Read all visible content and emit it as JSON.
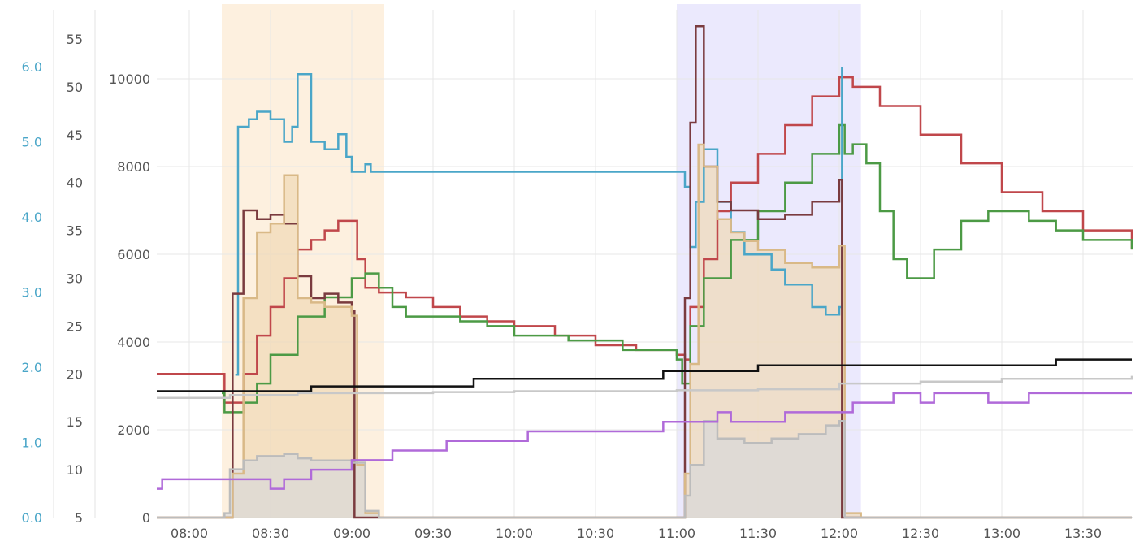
{
  "chart_data": {
    "type": "line",
    "title": "",
    "grid": true,
    "legend": "none",
    "x_axis": {
      "unit": "time",
      "min": "07:48",
      "max": "13:48",
      "tick_labels": [
        "08:00",
        "08:30",
        "09:00",
        "09:30",
        "10:00",
        "10:30",
        "11:00",
        "11:30",
        "12:00",
        "12:30",
        "13:00",
        "13:30"
      ]
    },
    "y_axes": [
      {
        "id": "left-outer",
        "color": "#4aa6c8",
        "min": 0.0,
        "max": 6.0,
        "tick_labels": [
          "0.0",
          "1.0",
          "2.0",
          "3.0",
          "4.0",
          "5.0",
          "6.0"
        ]
      },
      {
        "id": "left-middle",
        "color": "#555555",
        "min": 5,
        "max": 55,
        "tick_labels": [
          "5",
          "10",
          "15",
          "20",
          "25",
          "30",
          "35",
          "40",
          "45",
          "50",
          "55"
        ]
      },
      {
        "id": "left-inner",
        "color": "#555555",
        "min": 0,
        "max": 10000,
        "tick_labels": [
          "0",
          "2000",
          "4000",
          "6000",
          "8000",
          "10000"
        ]
      }
    ],
    "bands": [
      {
        "from": "08:12",
        "to": "09:12",
        "color": "#fdf0df"
      },
      {
        "from": "11:00",
        "to": "12:08",
        "color": "#ebe9fd"
      }
    ],
    "series": [
      {
        "color": "#c0474b",
        "axis": "left-middle",
        "step": true,
        "points": [
          [
            "07:48",
            20
          ],
          [
            "08:12",
            20
          ],
          [
            "08:13",
            17
          ],
          [
            "08:18",
            17
          ],
          [
            "08:20",
            20
          ],
          [
            "08:25",
            24
          ],
          [
            "08:30",
            27
          ],
          [
            "08:35",
            30
          ],
          [
            "08:40",
            33
          ],
          [
            "08:45",
            34
          ],
          [
            "08:50",
            35
          ],
          [
            "08:55",
            36
          ],
          [
            "09:00",
            36
          ],
          [
            "09:02",
            32
          ],
          [
            "09:05",
            29
          ],
          [
            "09:10",
            28.5
          ],
          [
            "09:20",
            28
          ],
          [
            "09:30",
            27
          ],
          [
            "09:40",
            26
          ],
          [
            "09:50",
            25.5
          ],
          [
            "10:00",
            25
          ],
          [
            "10:15",
            24
          ],
          [
            "10:30",
            23
          ],
          [
            "10:45",
            22.5
          ],
          [
            "11:00",
            22
          ],
          [
            "11:03",
            21.5
          ],
          [
            "11:05",
            27
          ],
          [
            "11:10",
            32
          ],
          [
            "11:15",
            37
          ],
          [
            "11:20",
            40
          ],
          [
            "11:30",
            43
          ],
          [
            "11:40",
            46
          ],
          [
            "11:50",
            49
          ],
          [
            "12:00",
            51
          ],
          [
            "12:05",
            50
          ],
          [
            "12:15",
            48
          ],
          [
            "12:30",
            45
          ],
          [
            "12:45",
            42
          ],
          [
            "13:00",
            39
          ],
          [
            "13:15",
            37
          ],
          [
            "13:30",
            35
          ],
          [
            "13:48",
            33
          ]
        ]
      },
      {
        "color": "#4c9a45",
        "axis": "left-middle",
        "step": true,
        "points": [
          [
            "08:12",
            18
          ],
          [
            "08:13",
            16
          ],
          [
            "08:20",
            17
          ],
          [
            "08:25",
            19
          ],
          [
            "08:30",
            22
          ],
          [
            "08:40",
            26
          ],
          [
            "08:50",
            28
          ],
          [
            "09:00",
            30
          ],
          [
            "09:05",
            30.5
          ],
          [
            "09:10",
            29
          ],
          [
            "09:15",
            27
          ],
          [
            "09:20",
            26
          ],
          [
            "09:40",
            25.5
          ],
          [
            "09:50",
            25
          ],
          [
            "10:00",
            24
          ],
          [
            "10:20",
            23.5
          ],
          [
            "10:40",
            22.5
          ],
          [
            "11:00",
            21.5
          ],
          [
            "11:02",
            19
          ],
          [
            "11:05",
            25
          ],
          [
            "11:10",
            30
          ],
          [
            "11:20",
            34
          ],
          [
            "11:30",
            37
          ],
          [
            "11:40",
            40
          ],
          [
            "11:50",
            43
          ],
          [
            "12:00",
            46
          ],
          [
            "12:02",
            43
          ],
          [
            "12:05",
            44
          ],
          [
            "12:10",
            42
          ],
          [
            "12:15",
            37
          ],
          [
            "12:20",
            32
          ],
          [
            "12:25",
            30
          ],
          [
            "12:30",
            30
          ],
          [
            "12:35",
            33
          ],
          [
            "12:45",
            36
          ],
          [
            "12:55",
            37
          ],
          [
            "13:05",
            37
          ],
          [
            "13:10",
            36
          ],
          [
            "13:20",
            35
          ],
          [
            "13:30",
            34
          ],
          [
            "13:48",
            33
          ]
        ]
      },
      {
        "color": "#4aa6c8",
        "axis": "left-outer",
        "step": true,
        "points": [
          [
            "08:17",
            1.9
          ],
          [
            "08:18",
            5.2
          ],
          [
            "08:22",
            5.3
          ],
          [
            "08:25",
            5.4
          ],
          [
            "08:30",
            5.3
          ],
          [
            "08:35",
            5.0
          ],
          [
            "08:38",
            5.2
          ],
          [
            "08:40",
            5.9
          ],
          [
            "08:42",
            5.9
          ],
          [
            "08:45",
            5.0
          ],
          [
            "08:50",
            4.9
          ],
          [
            "08:55",
            5.1
          ],
          [
            "08:58",
            4.8
          ],
          [
            "09:00",
            4.6
          ],
          [
            "09:05",
            4.7
          ],
          [
            "09:07",
            4.6
          ],
          [
            "11:03",
            4.4
          ],
          [
            "11:05",
            3.6
          ],
          [
            "11:07",
            4.2
          ],
          [
            "11:10",
            4.9
          ],
          [
            "11:15",
            4.2
          ],
          [
            "11:20",
            3.8
          ],
          [
            "11:25",
            3.5
          ],
          [
            "11:30",
            3.5
          ],
          [
            "11:35",
            3.3
          ],
          [
            "11:40",
            3.1
          ],
          [
            "11:50",
            2.8
          ],
          [
            "11:55",
            2.7
          ],
          [
            "12:00",
            2.8
          ],
          [
            "12:01",
            6.0
          ]
        ]
      },
      {
        "color": "#7a3b3f",
        "axis": "left-inner",
        "step": true,
        "points": [
          [
            "07:48",
            0
          ],
          [
            "08:15",
            0
          ],
          [
            "08:16",
            5100
          ],
          [
            "08:20",
            7000
          ],
          [
            "08:25",
            6800
          ],
          [
            "08:30",
            6900
          ],
          [
            "08:35",
            6700
          ],
          [
            "08:40",
            5500
          ],
          [
            "08:45",
            5000
          ],
          [
            "08:50",
            5100
          ],
          [
            "08:55",
            4900
          ],
          [
            "09:00",
            4700
          ],
          [
            "09:01",
            0
          ],
          [
            "11:01",
            0
          ],
          [
            "11:03",
            5000
          ],
          [
            "11:05",
            9000
          ],
          [
            "11:07",
            11200
          ],
          [
            "11:10",
            8000
          ],
          [
            "11:15",
            7200
          ],
          [
            "11:20",
            7000
          ],
          [
            "11:30",
            6800
          ],
          [
            "11:40",
            6900
          ],
          [
            "11:50",
            7200
          ],
          [
            "12:00",
            7700
          ],
          [
            "12:01",
            0
          ],
          [
            "13:48",
            0
          ]
        ]
      },
      {
        "color": "#d9b987",
        "fill": "#f0d9b5",
        "axis": "left-inner",
        "step": true,
        "points": [
          [
            "07:48",
            0
          ],
          [
            "08:15",
            0
          ],
          [
            "08:16",
            1000
          ],
          [
            "08:20",
            5000
          ],
          [
            "08:25",
            6500
          ],
          [
            "08:30",
            6700
          ],
          [
            "08:35",
            7800
          ],
          [
            "08:40",
            5000
          ],
          [
            "08:45",
            4900
          ],
          [
            "08:50",
            4800
          ],
          [
            "09:00",
            4600
          ],
          [
            "09:02",
            1200
          ],
          [
            "09:05",
            100
          ],
          [
            "09:10",
            0
          ],
          [
            "11:01",
            0
          ],
          [
            "11:03",
            1000
          ],
          [
            "11:05",
            3500
          ],
          [
            "11:08",
            8500
          ],
          [
            "11:10",
            8000
          ],
          [
            "11:15",
            6800
          ],
          [
            "11:20",
            6500
          ],
          [
            "11:25",
            6300
          ],
          [
            "11:30",
            6100
          ],
          [
            "11:40",
            5800
          ],
          [
            "11:50",
            5700
          ],
          [
            "12:00",
            6200
          ],
          [
            "12:02",
            100
          ],
          [
            "12:08",
            0
          ],
          [
            "13:48",
            0
          ]
        ]
      },
      {
        "color": "#bcbcbc",
        "fill": "#d8d8d8",
        "axis": "left-inner",
        "step": true,
        "points": [
          [
            "07:48",
            0
          ],
          [
            "08:12",
            0
          ],
          [
            "08:13",
            100
          ],
          [
            "08:15",
            1100
          ],
          [
            "08:20",
            1300
          ],
          [
            "08:25",
            1400
          ],
          [
            "08:35",
            1450
          ],
          [
            "08:40",
            1350
          ],
          [
            "08:45",
            1300
          ],
          [
            "09:00",
            1250
          ],
          [
            "09:05",
            150
          ],
          [
            "09:10",
            0
          ],
          [
            "11:01",
            0
          ],
          [
            "11:03",
            500
          ],
          [
            "11:05",
            1200
          ],
          [
            "11:10",
            2200
          ],
          [
            "11:15",
            1800
          ],
          [
            "11:25",
            1700
          ],
          [
            "11:35",
            1800
          ],
          [
            "11:45",
            1900
          ],
          [
            "11:55",
            2100
          ],
          [
            "12:00",
            2200
          ],
          [
            "12:02",
            0
          ],
          [
            "13:48",
            0
          ]
        ]
      },
      {
        "color": "#b06ad9",
        "axis": "left-middle",
        "step": true,
        "points": [
          [
            "07:48",
            8
          ],
          [
            "07:50",
            9
          ],
          [
            "08:25",
            9
          ],
          [
            "08:30",
            8
          ],
          [
            "08:35",
            9
          ],
          [
            "08:45",
            10
          ],
          [
            "09:00",
            11
          ],
          [
            "09:15",
            12
          ],
          [
            "09:35",
            13
          ],
          [
            "10:05",
            14
          ],
          [
            "10:55",
            15
          ],
          [
            "11:15",
            16
          ],
          [
            "11:20",
            15
          ],
          [
            "11:40",
            16
          ],
          [
            "12:05",
            17
          ],
          [
            "12:20",
            18
          ],
          [
            "12:30",
            17
          ],
          [
            "12:35",
            18
          ],
          [
            "12:55",
            17
          ],
          [
            "13:10",
            18
          ],
          [
            "13:48",
            18
          ]
        ]
      },
      {
        "color": "#c8c8c8",
        "axis": "left-middle",
        "step": true,
        "points": [
          [
            "07:48",
            17.5
          ],
          [
            "08:15",
            17.8
          ],
          [
            "08:40",
            18.0
          ],
          [
            "09:00",
            18.0
          ],
          [
            "09:30",
            18.1
          ],
          [
            "10:00",
            18.2
          ],
          [
            "10:30",
            18.2
          ],
          [
            "11:00",
            18.3
          ],
          [
            "11:30",
            18.4
          ],
          [
            "12:00",
            19.0
          ],
          [
            "12:30",
            19.2
          ],
          [
            "13:00",
            19.5
          ],
          [
            "13:48",
            19.8
          ]
        ]
      },
      {
        "color": "#111111",
        "axis": "left-middle",
        "step": true,
        "points": [
          [
            "07:48",
            18.2
          ],
          [
            "08:40",
            18.2
          ],
          [
            "08:45",
            18.7
          ],
          [
            "09:40",
            18.7
          ],
          [
            "09:45",
            19.5
          ],
          [
            "10:50",
            19.5
          ],
          [
            "10:55",
            20.3
          ],
          [
            "11:25",
            20.3
          ],
          [
            "11:30",
            20.9
          ],
          [
            "13:15",
            20.9
          ],
          [
            "13:20",
            21.5
          ],
          [
            "13:48",
            21.5
          ]
        ]
      }
    ]
  }
}
